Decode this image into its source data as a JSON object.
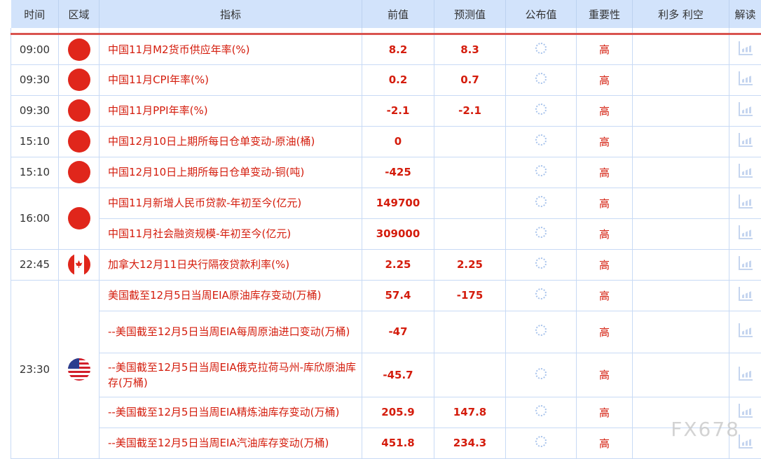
{
  "headers": [
    "时间",
    "区域",
    "指标",
    "前值",
    "预测值",
    "公布值",
    "重要性",
    "利多 利空",
    "解读"
  ],
  "rows": [
    {
      "time": "09:00",
      "region": "china",
      "indicator": "中国11月M2货币供应年率(%)",
      "prev": "8.2",
      "forecast": "8.3",
      "importance": "高"
    },
    {
      "time": "09:30",
      "region": "china",
      "indicator": "中国11月CPI年率(%)",
      "prev": "0.2",
      "forecast": "0.7",
      "importance": "高"
    },
    {
      "time": "09:30",
      "region": "china",
      "indicator": "中国11月PPI年率(%)",
      "prev": "-2.1",
      "forecast": "-2.1",
      "importance": "高"
    },
    {
      "time": "15:10",
      "region": "china",
      "indicator": "中国12月10日上期所每日仓单变动-原油(桶)",
      "prev": "0",
      "forecast": "",
      "importance": "高"
    },
    {
      "time": "15:10",
      "region": "china",
      "indicator": "中国12月10日上期所每日仓单变动-铜(吨)",
      "prev": "-425",
      "forecast": "",
      "importance": "高"
    },
    {
      "time": "16:00",
      "region": "china",
      "indicator": "中国11月新增人民币贷款-年初至今(亿元)",
      "prev": "149700",
      "forecast": "",
      "importance": "高"
    },
    {
      "time": "",
      "region": "",
      "indicator": "中国11月社会融资规模-年初至今(亿元)",
      "prev": "309000",
      "forecast": "",
      "importance": "高"
    },
    {
      "time": "22:45",
      "region": "canada",
      "indicator": "加拿大12月11日央行隔夜贷款利率(%)",
      "prev": "2.25",
      "forecast": "2.25",
      "importance": "高"
    },
    {
      "time": "23:30",
      "region": "usa",
      "indicator": "美国截至12月5日当周EIA原油库存变动(万桶)",
      "prev": "57.4",
      "forecast": "-175",
      "importance": "高"
    },
    {
      "time": "",
      "region": "",
      "indicator": "--美国截至12月5日当周EIA每周原油进口变动(万桶)",
      "prev": "-47",
      "forecast": "",
      "importance": "高"
    },
    {
      "time": "",
      "region": "",
      "indicator": "--美国截至12月5日当周EIA俄克拉荷马州-库欣原油库存(万桶)",
      "prev": "-45.7",
      "forecast": "",
      "importance": "高"
    },
    {
      "time": "",
      "region": "",
      "indicator": "--美国截至12月5日当周EIA精炼油库存变动(万桶)",
      "prev": "205.9",
      "forecast": "147.8",
      "importance": "高"
    },
    {
      "time": "",
      "region": "",
      "indicator": "--美国截至12月5日当周EIA汽油库存变动(万桶)",
      "prev": "451.8",
      "forecast": "234.3",
      "importance": "高"
    }
  ],
  "watermark": "FX678"
}
